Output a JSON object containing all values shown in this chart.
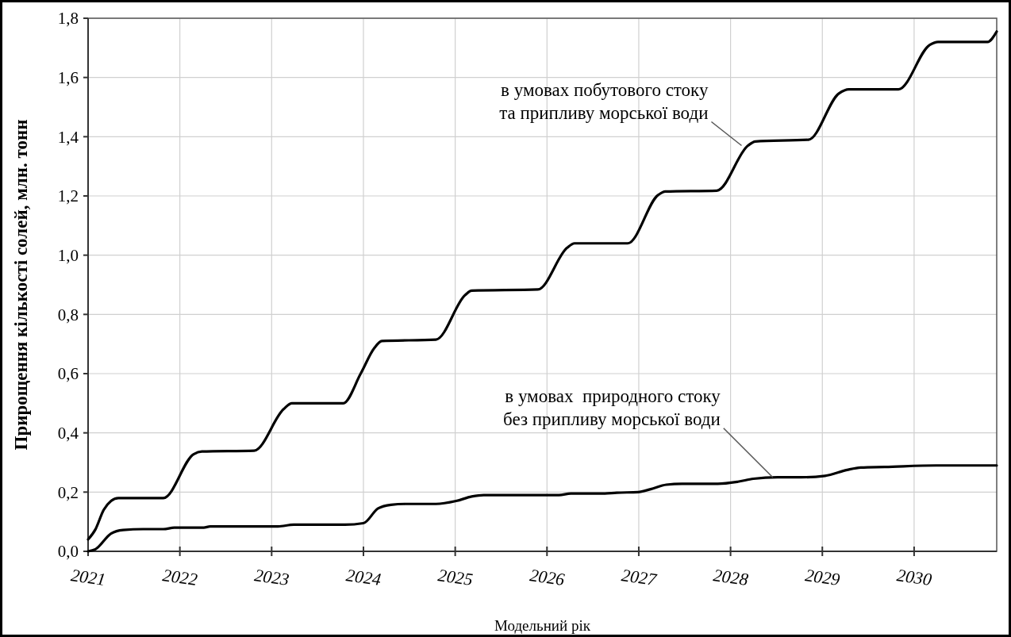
{
  "chart_data": {
    "type": "line",
    "xlabel": "Модельний рік",
    "ylabel": "Прирощення кількості солей, млн. тонн",
    "xlim": [
      2021,
      2030.9
    ],
    "ylim": [
      0,
      1.8
    ],
    "xticks": [
      2021,
      2022,
      2023,
      2024,
      2025,
      2026,
      2027,
      2028,
      2029,
      2030
    ],
    "yticks": [
      {
        "value": 0,
        "label": "0,0"
      },
      {
        "value": 0.2,
        "label": "0,2"
      },
      {
        "value": 0.4,
        "label": "0,4"
      },
      {
        "value": 0.6,
        "label": "0,6"
      },
      {
        "value": 0.8,
        "label": "0,8"
      },
      {
        "value": 1,
        "label": "1,0"
      },
      {
        "value": 1.2,
        "label": "1,2"
      },
      {
        "value": 1.4,
        "label": "1,4"
      },
      {
        "value": 1.6,
        "label": "1,6"
      },
      {
        "value": 1.8,
        "label": "1,8"
      }
    ],
    "grid": true,
    "marker": "none",
    "line_style": "solid",
    "series": [
      {
        "color": "#000000",
        "x": [
          2021,
          2021.08,
          2021.17,
          2021.25,
          2021.33,
          2021.82,
          2022.15,
          2022.24,
          2022.81,
          2023.13,
          2023.22,
          2023.78,
          2023.97,
          2024.12,
          2024.2,
          2024.79,
          2025.11,
          2025.18,
          2025.9,
          2026.22,
          2026.3,
          2026.88,
          2027.21,
          2027.29,
          2027.85,
          2028.19,
          2028.27,
          2028.85,
          2029.18,
          2029.29,
          2029.83,
          2030.17,
          2030.26,
          2030.8,
          2030.9
        ],
        "values": [
          0.04,
          0.074,
          0.14,
          0.17,
          0.18,
          0.18,
          0.328,
          0.337,
          0.34,
          0.48,
          0.5,
          0.5,
          0.6,
          0.687,
          0.71,
          0.715,
          0.866,
          0.88,
          0.884,
          1.025,
          1.04,
          1.04,
          1.203,
          1.215,
          1.218,
          1.37,
          1.384,
          1.39,
          1.546,
          1.56,
          1.56,
          1.71,
          1.72,
          1.72,
          1.755
        ]
      },
      {
        "color": "#000000",
        "x": [
          2021,
          2021.08,
          2021.25,
          2021.38,
          2021.6,
          2021.82,
          2021.94,
          2022.26,
          2022.33,
          2023.07,
          2023.24,
          2023.8,
          2024,
          2024.16,
          2024.3,
          2024.45,
          2024.79,
          2025.01,
          2025.18,
          2025.31,
          2025.49,
          2026.13,
          2026.26,
          2026.61,
          2026.76,
          2026.99,
          2027.13,
          2027.3,
          2027.47,
          2027.86,
          2028.08,
          2028.25,
          2028.51,
          2028.77,
          2029.03,
          2029.27,
          2029.42,
          2029.68,
          2030.24,
          2030.9
        ],
        "values": [
          0,
          0.007,
          0.06,
          0.072,
          0.075,
          0.075,
          0.08,
          0.08,
          0.084,
          0.084,
          0.09,
          0.09,
          0.095,
          0.145,
          0.157,
          0.16,
          0.16,
          0.17,
          0.185,
          0.19,
          0.19,
          0.19,
          0.195,
          0.195,
          0.198,
          0.2,
          0.21,
          0.225,
          0.228,
          0.228,
          0.235,
          0.245,
          0.25,
          0.25,
          0.255,
          0.275,
          0.283,
          0.285,
          0.29,
          0.29
        ]
      }
    ],
    "annotations": [
      {
        "text": "в умовах побутового стоку\nта припливу морської води",
        "x": 2028.12,
        "y": 1.37
      },
      {
        "text": "в умовах  природного стоку\nбез припливу морської води",
        "x": 2028.46,
        "y": 0.25
      }
    ]
  }
}
